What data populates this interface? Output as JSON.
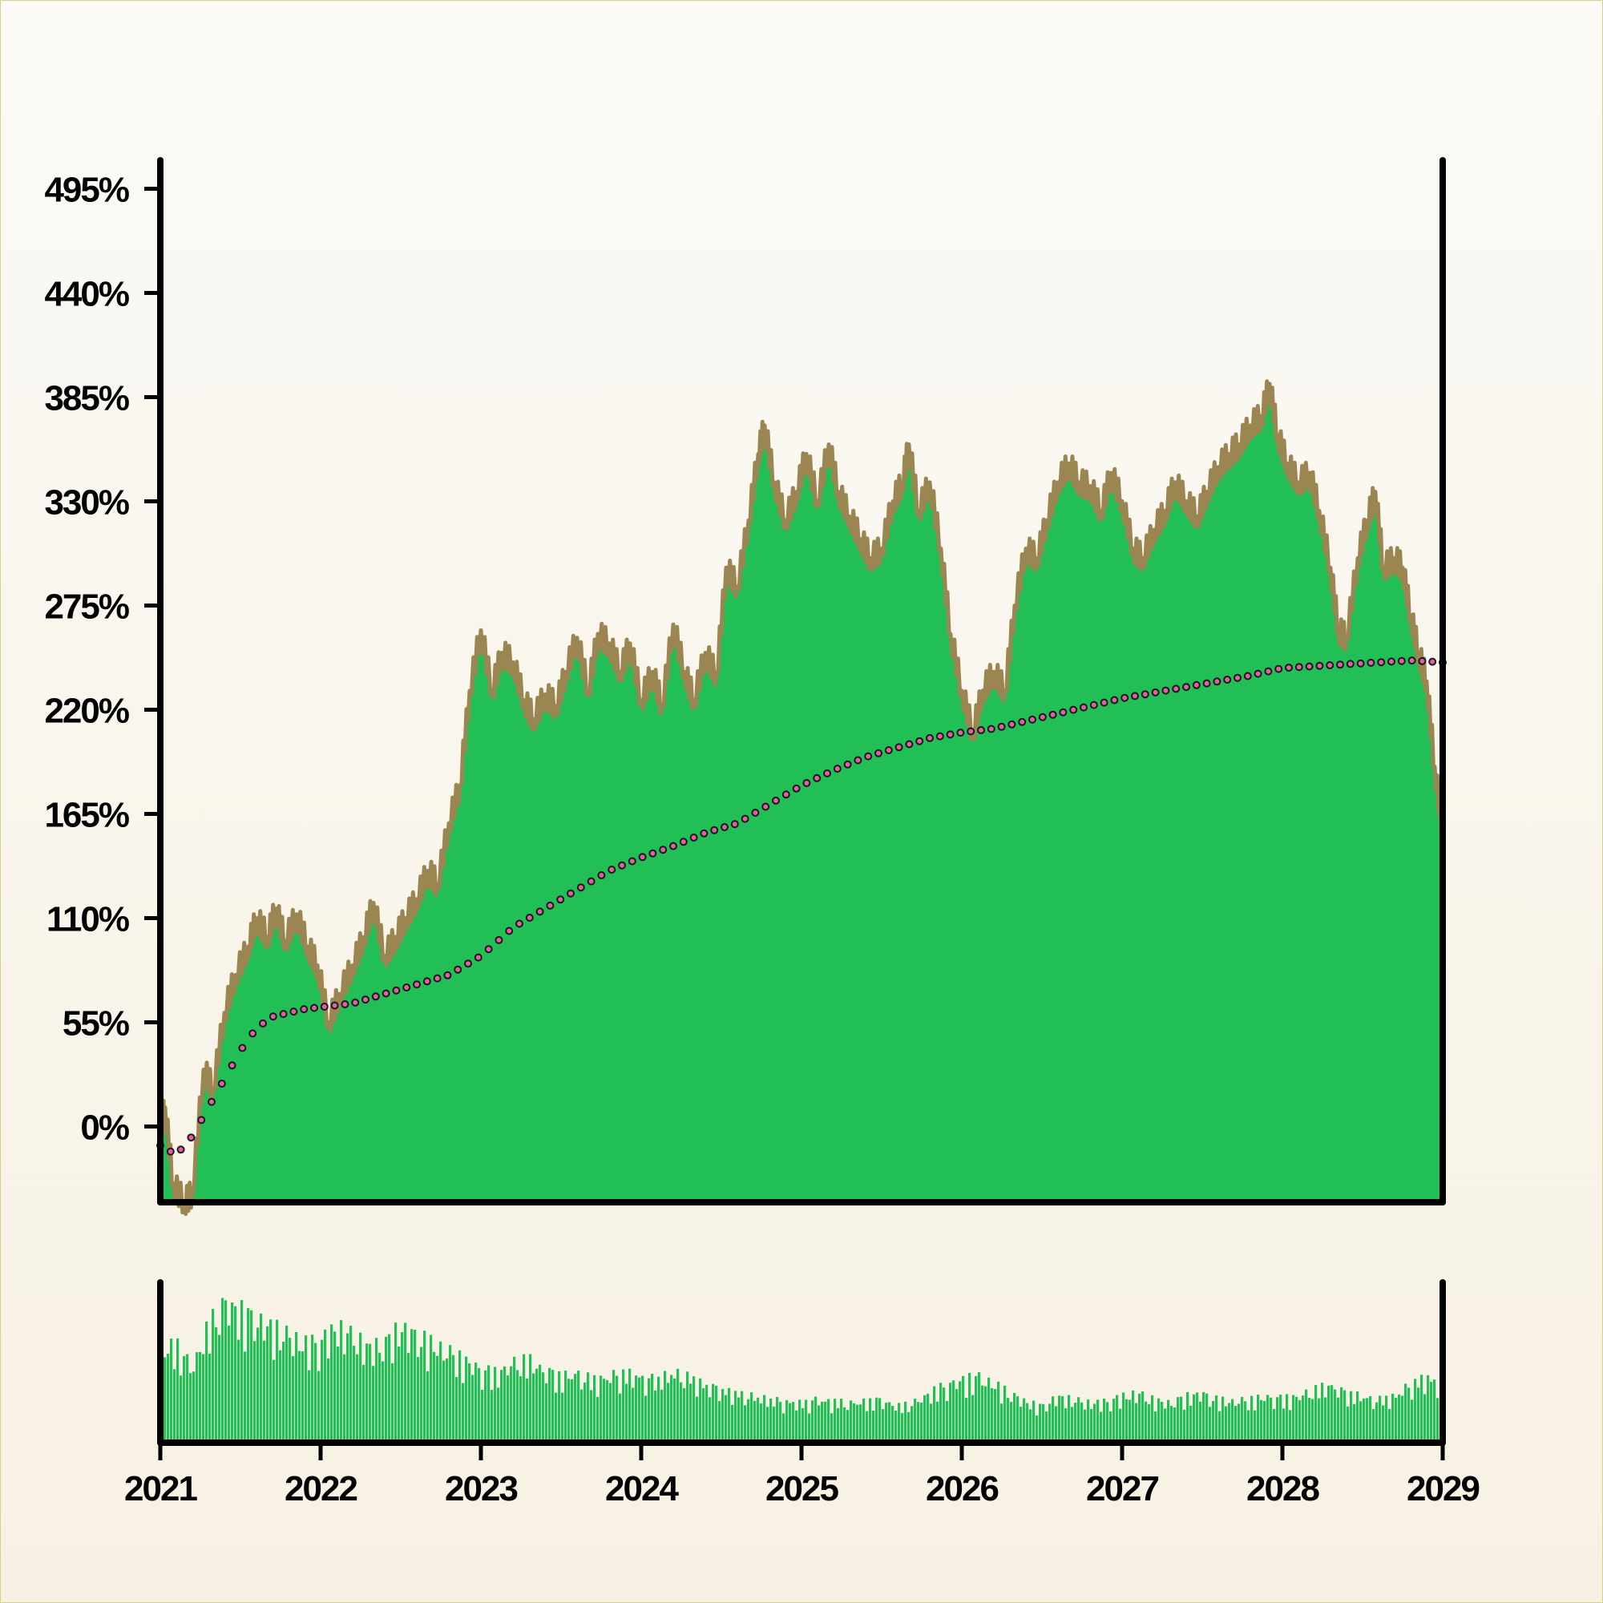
{
  "chart_data": {
    "type": "area",
    "xlabel": "",
    "ylabel": "",
    "x_ticks": [
      "2021",
      "2022",
      "2023",
      "2024",
      "2025",
      "2026",
      "2027",
      "2028",
      "2029"
    ],
    "x_range": [
      2021,
      2029
    ],
    "y_ticks": [
      "0%",
      "55%",
      "110%",
      "165%",
      "220%",
      "275%",
      "330%",
      "385%",
      "440%",
      "495%"
    ],
    "y_tick_values": [
      0,
      55,
      110,
      165,
      220,
      275,
      330,
      385,
      440,
      495
    ],
    "y_range": [
      -40,
      510
    ],
    "grid": false,
    "colors": {
      "area_fill": "#21bf55",
      "area_edge": "#9b8550",
      "moving_avg_marker": "#e35da6",
      "volume_bar": "#21bf55",
      "axes": "#000000"
    },
    "series": [
      {
        "role": "main-area",
        "points": [
          [
            2021.0,
            0
          ],
          [
            2021.03,
            10
          ],
          [
            2021.08,
            -30
          ],
          [
            2021.15,
            -40
          ],
          [
            2021.2,
            -35
          ],
          [
            2021.27,
            30
          ],
          [
            2021.33,
            20
          ],
          [
            2021.4,
            60
          ],
          [
            2021.47,
            80
          ],
          [
            2021.55,
            95
          ],
          [
            2021.6,
            110
          ],
          [
            2021.67,
            100
          ],
          [
            2021.72,
            115
          ],
          [
            2021.78,
            98
          ],
          [
            2021.85,
            112
          ],
          [
            2021.92,
            95
          ],
          [
            2021.98,
            85
          ],
          [
            2022.05,
            55
          ],
          [
            2022.12,
            70
          ],
          [
            2022.2,
            85
          ],
          [
            2022.27,
            100
          ],
          [
            2022.33,
            118
          ],
          [
            2022.4,
            90
          ],
          [
            2022.47,
            100
          ],
          [
            2022.53,
            110
          ],
          [
            2022.6,
            120
          ],
          [
            2022.67,
            135
          ],
          [
            2022.73,
            128
          ],
          [
            2022.8,
            160
          ],
          [
            2022.87,
            180
          ],
          [
            2022.93,
            230
          ],
          [
            2023.0,
            262
          ],
          [
            2023.07,
            230
          ],
          [
            2023.13,
            250
          ],
          [
            2023.2,
            245
          ],
          [
            2023.27,
            225
          ],
          [
            2023.33,
            215
          ],
          [
            2023.4,
            228
          ],
          [
            2023.47,
            222
          ],
          [
            2023.53,
            240
          ],
          [
            2023.6,
            258
          ],
          [
            2023.67,
            230
          ],
          [
            2023.73,
            260
          ],
          [
            2023.8,
            255
          ],
          [
            2023.87,
            240
          ],
          [
            2023.93,
            255
          ],
          [
            2024.0,
            225
          ],
          [
            2024.07,
            240
          ],
          [
            2024.13,
            222
          ],
          [
            2024.2,
            265
          ],
          [
            2024.27,
            240
          ],
          [
            2024.33,
            225
          ],
          [
            2024.4,
            250
          ],
          [
            2024.47,
            238
          ],
          [
            2024.53,
            295
          ],
          [
            2024.6,
            285
          ],
          [
            2024.67,
            320
          ],
          [
            2024.73,
            355
          ],
          [
            2024.77,
            370
          ],
          [
            2024.83,
            340
          ],
          [
            2024.9,
            320
          ],
          [
            2024.97,
            335
          ],
          [
            2025.03,
            355
          ],
          [
            2025.1,
            330
          ],
          [
            2025.17,
            360
          ],
          [
            2025.23,
            335
          ],
          [
            2025.3,
            322
          ],
          [
            2025.37,
            310
          ],
          [
            2025.43,
            300
          ],
          [
            2025.5,
            305
          ],
          [
            2025.57,
            330
          ],
          [
            2025.63,
            340
          ],
          [
            2025.67,
            360
          ],
          [
            2025.73,
            325
          ],
          [
            2025.8,
            340
          ],
          [
            2025.87,
            305
          ],
          [
            2025.93,
            260
          ],
          [
            2026.0,
            230
          ],
          [
            2026.07,
            208
          ],
          [
            2026.13,
            230
          ],
          [
            2026.2,
            240
          ],
          [
            2026.27,
            230
          ],
          [
            2026.33,
            275
          ],
          [
            2026.4,
            305
          ],
          [
            2026.47,
            300
          ],
          [
            2026.53,
            320
          ],
          [
            2026.6,
            340
          ],
          [
            2026.67,
            350
          ],
          [
            2026.73,
            340
          ],
          [
            2026.8,
            338
          ],
          [
            2026.87,
            325
          ],
          [
            2026.93,
            345
          ],
          [
            2027.0,
            330
          ],
          [
            2027.07,
            305
          ],
          [
            2027.13,
            300
          ],
          [
            2027.2,
            315
          ],
          [
            2027.27,
            325
          ],
          [
            2027.33,
            340
          ],
          [
            2027.4,
            330
          ],
          [
            2027.47,
            322
          ],
          [
            2027.53,
            335
          ],
          [
            2027.6,
            348
          ],
          [
            2027.67,
            355
          ],
          [
            2027.73,
            360
          ],
          [
            2027.8,
            370
          ],
          [
            2027.87,
            375
          ],
          [
            2027.92,
            392
          ],
          [
            2027.97,
            365
          ],
          [
            2028.03,
            350
          ],
          [
            2028.1,
            340
          ],
          [
            2028.17,
            345
          ],
          [
            2028.23,
            325
          ],
          [
            2028.3,
            295
          ],
          [
            2028.35,
            262
          ],
          [
            2028.4,
            258
          ],
          [
            2028.47,
            300
          ],
          [
            2028.53,
            320
          ],
          [
            2028.58,
            335
          ],
          [
            2028.63,
            295
          ],
          [
            2028.7,
            300
          ],
          [
            2028.75,
            295
          ],
          [
            2028.8,
            270
          ],
          [
            2028.85,
            250
          ],
          [
            2028.9,
            235
          ],
          [
            2028.95,
            190
          ],
          [
            2029.0,
            155
          ]
        ]
      },
      {
        "role": "moving-average",
        "points": [
          [
            2021.0,
            -10
          ],
          [
            2021.1,
            -15
          ],
          [
            2021.2,
            -5
          ],
          [
            2021.3,
            10
          ],
          [
            2021.4,
            25
          ],
          [
            2021.5,
            40
          ],
          [
            2021.6,
            52
          ],
          [
            2021.7,
            58
          ],
          [
            2021.8,
            60
          ],
          [
            2021.9,
            62
          ],
          [
            2022.0,
            63
          ],
          [
            2022.2,
            65
          ],
          [
            2022.4,
            70
          ],
          [
            2022.6,
            75
          ],
          [
            2022.8,
            80
          ],
          [
            2023.0,
            90
          ],
          [
            2023.2,
            105
          ],
          [
            2023.4,
            115
          ],
          [
            2023.6,
            125
          ],
          [
            2023.8,
            135
          ],
          [
            2024.0,
            142
          ],
          [
            2024.2,
            148
          ],
          [
            2024.4,
            155
          ],
          [
            2024.6,
            160
          ],
          [
            2024.8,
            170
          ],
          [
            2025.0,
            180
          ],
          [
            2025.2,
            188
          ],
          [
            2025.4,
            195
          ],
          [
            2025.6,
            200
          ],
          [
            2025.8,
            205
          ],
          [
            2026.0,
            208
          ],
          [
            2026.2,
            210
          ],
          [
            2026.4,
            214
          ],
          [
            2026.6,
            218
          ],
          [
            2026.8,
            222
          ],
          [
            2027.0,
            226
          ],
          [
            2027.2,
            229
          ],
          [
            2027.4,
            232
          ],
          [
            2027.6,
            235
          ],
          [
            2027.8,
            238
          ],
          [
            2028.0,
            242
          ],
          [
            2028.2,
            243
          ],
          [
            2028.4,
            244
          ],
          [
            2028.6,
            245
          ],
          [
            2028.8,
            246
          ],
          [
            2029.0,
            245
          ]
        ]
      },
      {
        "role": "volume",
        "points": [
          [
            2021.0,
            55
          ],
          [
            2021.1,
            60
          ],
          [
            2021.2,
            45
          ],
          [
            2021.3,
            70
          ],
          [
            2021.4,
            85
          ],
          [
            2021.5,
            80
          ],
          [
            2021.6,
            75
          ],
          [
            2021.7,
            70
          ],
          [
            2021.8,
            65
          ],
          [
            2021.9,
            60
          ],
          [
            2022.0,
            62
          ],
          [
            2022.1,
            70
          ],
          [
            2022.2,
            65
          ],
          [
            2022.3,
            58
          ],
          [
            2022.4,
            60
          ],
          [
            2022.5,
            70
          ],
          [
            2022.6,
            65
          ],
          [
            2022.7,
            60
          ],
          [
            2022.8,
            55
          ],
          [
            2022.9,
            50
          ],
          [
            2023.0,
            45
          ],
          [
            2023.1,
            42
          ],
          [
            2023.2,
            48
          ],
          [
            2023.3,
            50
          ],
          [
            2023.4,
            44
          ],
          [
            2023.5,
            40
          ],
          [
            2023.6,
            42
          ],
          [
            2023.7,
            38
          ],
          [
            2023.8,
            40
          ],
          [
            2023.9,
            42
          ],
          [
            2024.0,
            40
          ],
          [
            2024.1,
            38
          ],
          [
            2024.2,
            42
          ],
          [
            2024.3,
            40
          ],
          [
            2024.4,
            35
          ],
          [
            2024.5,
            32
          ],
          [
            2024.6,
            30
          ],
          [
            2024.7,
            28
          ],
          [
            2024.8,
            26
          ],
          [
            2024.9,
            25
          ],
          [
            2025.0,
            24
          ],
          [
            2025.1,
            26
          ],
          [
            2025.2,
            25
          ],
          [
            2025.3,
            24
          ],
          [
            2025.4,
            25
          ],
          [
            2025.5,
            26
          ],
          [
            2025.6,
            22
          ],
          [
            2025.7,
            24
          ],
          [
            2025.8,
            30
          ],
          [
            2025.9,
            35
          ],
          [
            2026.0,
            38
          ],
          [
            2026.1,
            40
          ],
          [
            2026.2,
            36
          ],
          [
            2026.3,
            30
          ],
          [
            2026.4,
            25
          ],
          [
            2026.5,
            22
          ],
          [
            2026.6,
            28
          ],
          [
            2026.7,
            26
          ],
          [
            2026.8,
            24
          ],
          [
            2026.9,
            25
          ],
          [
            2027.0,
            28
          ],
          [
            2027.1,
            30
          ],
          [
            2027.2,
            26
          ],
          [
            2027.3,
            24
          ],
          [
            2027.4,
            28
          ],
          [
            2027.5,
            30
          ],
          [
            2027.6,
            26
          ],
          [
            2027.7,
            25
          ],
          [
            2027.8,
            26
          ],
          [
            2027.9,
            28
          ],
          [
            2028.0,
            27
          ],
          [
            2028.1,
            28
          ],
          [
            2028.2,
            32
          ],
          [
            2028.3,
            35
          ],
          [
            2028.4,
            30
          ],
          [
            2028.5,
            28
          ],
          [
            2028.6,
            26
          ],
          [
            2028.7,
            28
          ],
          [
            2028.8,
            35
          ],
          [
            2028.9,
            40
          ],
          [
            2029.0,
            35
          ]
        ]
      }
    ]
  }
}
